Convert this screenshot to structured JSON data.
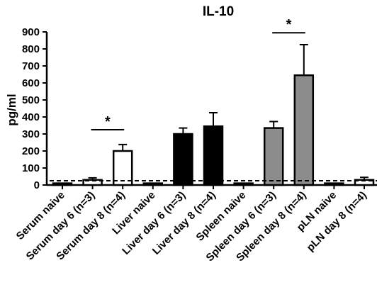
{
  "chart_data": {
    "type": "bar",
    "title": "IL-10",
    "ylabel": "pg/ml",
    "xlabel": "",
    "ylim": [
      0,
      900
    ],
    "yticks": [
      0,
      100,
      200,
      300,
      400,
      500,
      600,
      700,
      800,
      900
    ],
    "categories": [
      "Serum naive",
      "Serum day 6 (n=3)",
      "Serum day 8 (n=4)",
      "Liver naive",
      "Liver day 6 (n=3)",
      "Liver day 8 (n=4)",
      "Spleen naive",
      "Spleen day 6 (n=3)",
      "Spleen day 8 (n=4)",
      "pLN naive",
      "pLN day 8 (n=4)"
    ],
    "values": [
      10,
      30,
      200,
      10,
      300,
      345,
      10,
      335,
      645,
      10,
      30
    ],
    "errors": [
      0,
      12,
      38,
      0,
      35,
      80,
      0,
      38,
      180,
      0,
      15
    ],
    "fill_colors": [
      "#ffffff",
      "#ffffff",
      "#ffffff",
      "#000000",
      "#000000",
      "#000000",
      "#8c8c8c",
      "#8c8c8c",
      "#8c8c8c",
      "#ffffff",
      "#ffffff"
    ],
    "detection_limit": 25,
    "significance": [
      {
        "from": 1,
        "to": 2,
        "y": 325,
        "label": "*"
      },
      {
        "from": 7,
        "to": 8,
        "y": 895,
        "label": "*"
      }
    ],
    "grid": false,
    "legend": "none"
  }
}
